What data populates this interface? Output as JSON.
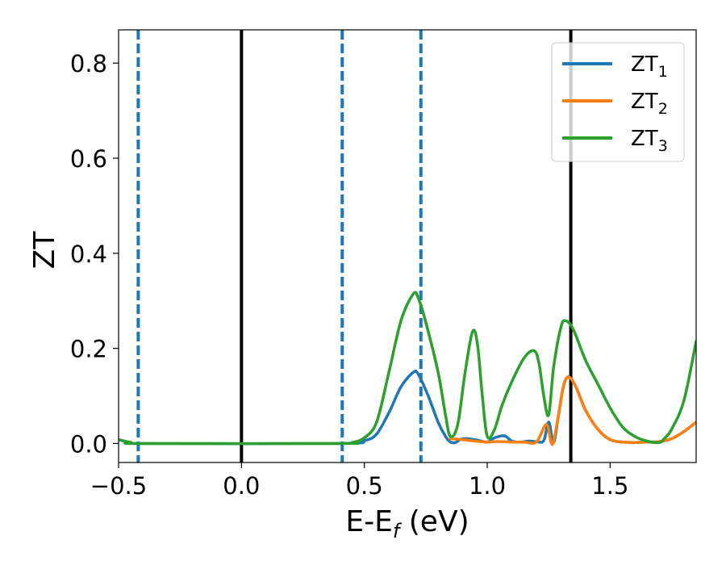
{
  "chart_data": {
    "type": "line",
    "xlabel": {
      "main": "E-E",
      "sub": "f",
      "rest": " (eV)"
    },
    "ylabel": "ZT",
    "xlim": [
      -0.5,
      1.85
    ],
    "ylim": [
      -0.04,
      0.87
    ],
    "xticks": [
      -0.5,
      0.0,
      0.5,
      1.0,
      1.5
    ],
    "xtick_labels": [
      "−0.5",
      "0.0",
      "0.5",
      "1.0",
      "1.5"
    ],
    "yticks": [
      0.0,
      0.2,
      0.4,
      0.6,
      0.8
    ],
    "ytick_labels": [
      "0.0",
      "0.2",
      "0.4",
      "0.6",
      "0.8"
    ],
    "legend_position": "top-right",
    "series": [
      {
        "name": "ZT",
        "sub": "1",
        "color": "#1f77b4",
        "x": [
          -0.5,
          -0.45,
          -0.4,
          0.4,
          0.5,
          0.55,
          0.6,
          0.65,
          0.7,
          0.72,
          0.76,
          0.8,
          0.83,
          0.85,
          0.87,
          0.9,
          0.95,
          1.0,
          1.03,
          1.07,
          1.1,
          1.13,
          1.17,
          1.2,
          1.23,
          1.25,
          1.27,
          1.29,
          1.31,
          1.33,
          1.36,
          1.4,
          1.45,
          1.5,
          1.55,
          1.6,
          1.65,
          1.7,
          1.75,
          1.8,
          1.85
        ],
        "y": [
          0.008,
          0.002,
          0.0,
          0.0,
          0.006,
          0.02,
          0.065,
          0.12,
          0.15,
          0.145,
          0.1,
          0.045,
          0.015,
          0.003,
          0.002,
          0.01,
          0.008,
          0.003,
          0.012,
          0.016,
          0.005,
          0.003,
          0.005,
          0.004,
          0.006,
          0.045,
          0.002,
          0.06,
          0.12,
          0.14,
          0.12,
          0.07,
          0.03,
          0.008,
          0.003,
          0.002,
          0.003,
          0.004,
          0.01,
          0.025,
          0.045
        ]
      },
      {
        "name": "ZT",
        "sub": "2",
        "color": "#ff7f0e",
        "x": [
          0.85,
          0.9,
          0.95,
          1.0,
          1.03,
          1.06,
          1.1,
          1.15,
          1.2,
          1.24,
          1.26,
          1.27,
          1.29,
          1.31,
          1.33,
          1.36,
          1.4,
          1.45,
          1.5,
          1.55,
          1.6,
          1.65,
          1.7,
          1.75,
          1.8,
          1.85
        ],
        "y": [
          0.01,
          0.008,
          0.005,
          0.003,
          0.004,
          0.004,
          0.003,
          0.003,
          0.003,
          0.04,
          0.002,
          0.005,
          0.06,
          0.12,
          0.14,
          0.12,
          0.07,
          0.03,
          0.008,
          0.003,
          0.002,
          0.003,
          0.004,
          0.01,
          0.025,
          0.045
        ]
      },
      {
        "name": "ZT",
        "sub": "3",
        "color": "#2ca02c",
        "x": [
          -0.5,
          -0.45,
          -0.4,
          0.4,
          0.45,
          0.5,
          0.55,
          0.6,
          0.65,
          0.7,
          0.72,
          0.75,
          0.8,
          0.83,
          0.85,
          0.88,
          0.91,
          0.94,
          0.96,
          0.98,
          1.0,
          1.03,
          1.06,
          1.1,
          1.15,
          1.19,
          1.21,
          1.23,
          1.25,
          1.27,
          1.3,
          1.32,
          1.35,
          1.4,
          1.45,
          1.5,
          1.55,
          1.6,
          1.65,
          1.7,
          1.72,
          1.75,
          1.8,
          1.85
        ],
        "y": [
          0.008,
          0.002,
          0.0,
          0.0,
          0.002,
          0.012,
          0.045,
          0.15,
          0.26,
          0.315,
          0.305,
          0.255,
          0.15,
          0.06,
          0.015,
          0.04,
          0.15,
          0.235,
          0.21,
          0.1,
          0.015,
          0.03,
          0.08,
          0.13,
          0.18,
          0.195,
          0.17,
          0.1,
          0.06,
          0.16,
          0.245,
          0.258,
          0.24,
          0.175,
          0.125,
          0.075,
          0.035,
          0.015,
          0.005,
          0.002,
          0.01,
          0.03,
          0.09,
          0.215
        ]
      }
    ],
    "vlines": [
      {
        "x": -0.42,
        "style": "dashed",
        "color": "#1f77b4"
      },
      {
        "x": 0.0,
        "style": "solid",
        "color": "#000000"
      },
      {
        "x": 0.41,
        "style": "dashed",
        "color": "#1f77b4"
      },
      {
        "x": 0.73,
        "style": "dashed",
        "color": "#1f77b4"
      },
      {
        "x": 1.34,
        "style": "solid",
        "color": "#000000"
      }
    ]
  }
}
